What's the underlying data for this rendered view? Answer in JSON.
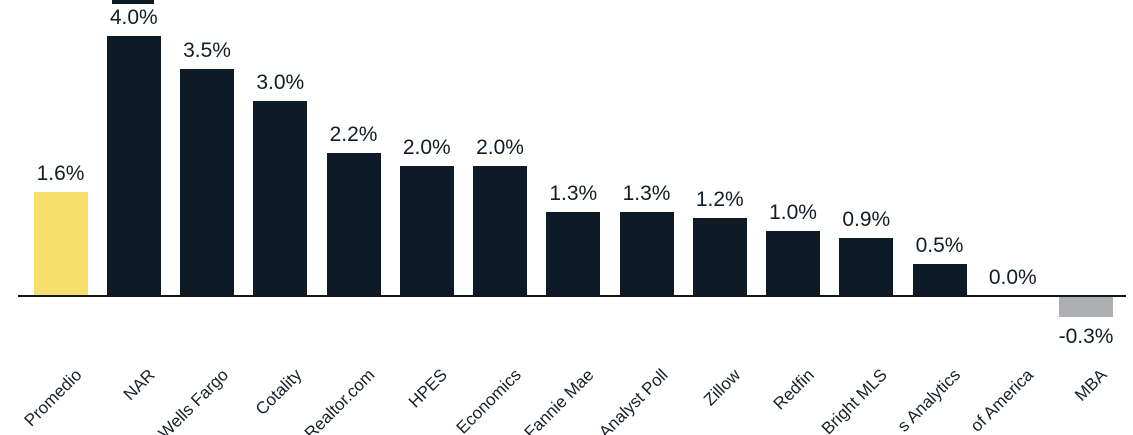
{
  "chart_data": {
    "type": "bar",
    "title": "",
    "xlabel": "",
    "ylabel": "",
    "categories": [
      "Promedio",
      "NAR",
      "Wells Fargo",
      "Cotality",
      "Realtor.com",
      "HPES",
      "Economics",
      "Fannie Mae",
      "Analyst Poll",
      "Zillow",
      "Redfin",
      "Bright MLS",
      "s Analytics",
      "of America",
      "MBA"
    ],
    "values": [
      1.6,
      4.0,
      3.5,
      3.0,
      2.2,
      2.0,
      2.0,
      1.3,
      1.3,
      1.2,
      1.0,
      0.9,
      0.5,
      0.0,
      -0.3
    ],
    "value_labels": [
      "1.6%",
      "4.0%",
      "3.5%",
      "3.0%",
      "2.2%",
      "2.0%",
      "2.0%",
      "1.3%",
      "1.3%",
      "1.2%",
      "1.0%",
      "0.9%",
      "0.5%",
      "0.0%",
      "-0.3%"
    ],
    "bar_colors": [
      "#f7df6e",
      "#0e1b26",
      "#0e1b26",
      "#0e1b26",
      "#0e1b26",
      "#0e1b26",
      "#0e1b26",
      "#0e1b26",
      "#0e1b26",
      "#0e1b26",
      "#0e1b26",
      "#0e1b26",
      "#0e1b26",
      "#0e1b26",
      "#aeafb2"
    ],
    "colors": {
      "highlight": "#f7df6e",
      "default": "#0e1b26",
      "negative": "#aeafb2",
      "axis": "#10181f",
      "label_text": "#121c26"
    },
    "ylim": [
      -0.5,
      4.4
    ],
    "grid": false,
    "legend": false,
    "y_axis_visible": false,
    "tick_label_rotation_deg": 45
  }
}
